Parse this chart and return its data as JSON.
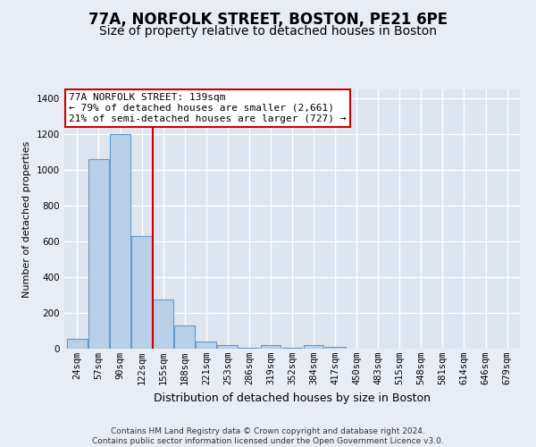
{
  "title": "77A, NORFOLK STREET, BOSTON, PE21 6PE",
  "subtitle": "Size of property relative to detached houses in Boston",
  "xlabel": "Distribution of detached houses by size in Boston",
  "ylabel": "Number of detached properties",
  "footnote": "Contains HM Land Registry data © Crown copyright and database right 2024.\nContains public sector information licensed under the Open Government Licence v3.0.",
  "bar_labels": [
    "24sqm",
    "57sqm",
    "90sqm",
    "122sqm",
    "155sqm",
    "188sqm",
    "221sqm",
    "253sqm",
    "286sqm",
    "319sqm",
    "352sqm",
    "384sqm",
    "417sqm",
    "450sqm",
    "483sqm",
    "515sqm",
    "548sqm",
    "581sqm",
    "614sqm",
    "646sqm",
    "679sqm"
  ],
  "bar_values": [
    55,
    1060,
    1200,
    630,
    275,
    130,
    40,
    20,
    5,
    20,
    5,
    20,
    8,
    0,
    0,
    0,
    0,
    0,
    0,
    0,
    0
  ],
  "bar_color": "#b8cfe8",
  "bar_edgecolor": "#6699cc",
  "vline_x": 3.5,
  "vline_color": "#cc0000",
  "annotation_text": "77A NORFOLK STREET: 139sqm\n← 79% of detached houses are smaller (2,661)\n21% of semi-detached houses are larger (727) →",
  "annotation_box_color": "#ffffff",
  "annotation_box_edgecolor": "#cc0000",
  "ylim": [
    0,
    1450
  ],
  "yticks": [
    0,
    200,
    400,
    600,
    800,
    1000,
    1200,
    1400
  ],
  "bg_color": "#e8edf5",
  "plot_bg_color": "#dce5f0",
  "grid_color": "#ffffff",
  "title_fontsize": 12,
  "subtitle_fontsize": 10,
  "annotation_fontsize": 8,
  "ylabel_fontsize": 8,
  "xlabel_fontsize": 9,
  "tick_fontsize": 7.5
}
